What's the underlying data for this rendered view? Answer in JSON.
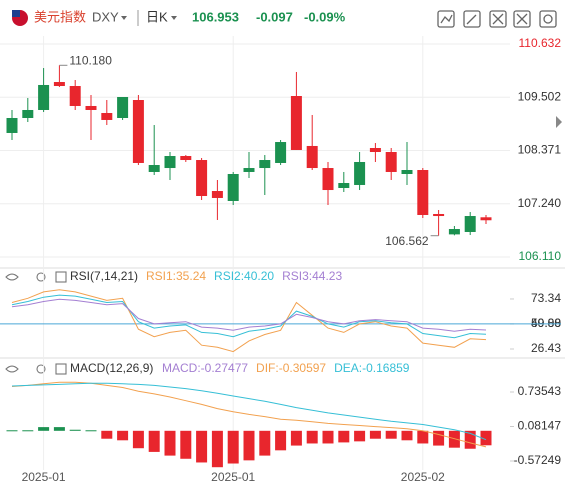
{
  "header": {
    "name": "美元指数",
    "symbol": "DXY",
    "period": "日K",
    "price": 106.953,
    "change": -0.097,
    "change_pct": "-0.09%"
  },
  "chart_data": [
    {
      "type": "candlestick",
      "up_color": "#e8262d",
      "down_color": "#1b9150",
      "categories": [
        null,
        null,
        "2025-01",
        null,
        null,
        null,
        null,
        null,
        null,
        null,
        null,
        null,
        null,
        null,
        "2025-01",
        null,
        null,
        null,
        null,
        null,
        null,
        null,
        null,
        null,
        null,
        null,
        "2025-02",
        null,
        null,
        null,
        null
      ],
      "open": [
        109.061,
        109.231,
        109.762,
        109.74,
        109.316,
        109.231,
        109.019,
        109.507,
        108.106,
        108.063,
        108.254,
        108.169,
        107.405,
        107.363,
        107.872,
        107.999,
        108.169,
        108.551,
        108.382,
        107.999,
        107.532,
        107.681,
        108.127,
        108.339,
        107.915,
        107.957,
        107.002,
        106.98,
        106.704,
        106.98,
        106.89
      ],
      "close": [
        108.743,
        109.061,
        109.231,
        109.825,
        109.74,
        109.316,
        109.167,
        109.061,
        109.443,
        107.915,
        107.999,
        108.254,
        108.169,
        107.511,
        107.299,
        107.915,
        107.999,
        108.106,
        109.528,
        108.467,
        107.999,
        107.575,
        107.639,
        108.424,
        108.339,
        107.872,
        107.957,
        107.023,
        106.59,
        106.641,
        106.953
      ],
      "high": [
        109.231,
        109.486,
        110.122,
        110.18,
        109.868,
        109.549,
        109.443,
        109.507,
        109.549,
        108.912,
        108.339,
        108.275,
        108.212,
        107.745,
        107.915,
        108.339,
        108.275,
        108.594,
        110.038,
        109.125,
        108.127,
        107.915,
        108.339,
        108.53,
        108.424,
        108.551,
        107.999,
        107.108,
        106.768,
        107.065,
        107.002
      ],
      "low": [
        108.594,
        108.976,
        109.188,
        109.719,
        109.231,
        108.594,
        108.912,
        109.019,
        108.063,
        107.851,
        107.745,
        108.127,
        107.32,
        106.896,
        107.214,
        107.787,
        107.426,
        108.063,
        108.382,
        107.957,
        107.214,
        107.49,
        107.532,
        108.127,
        107.745,
        107.639,
        106.938,
        106.562,
        106.57,
        106.577,
        106.811
      ],
      "max_label": "110.180",
      "min_label": "106.562",
      "ylim": [
        106.11,
        110.632
      ],
      "yticks": [
        110.632,
        109.502,
        108.371,
        {
          "value": 107.24,
          "label": "107.240"
        },
        {
          "value": 106.11,
          "label": "106.110"
        }
      ],
      "grid": true
    },
    {
      "type": "line",
      "title": "RSI(7,14,21)",
      "hline": 50,
      "hline_color": "#4aa8d8",
      "series": [
        {
          "name": "RSI1:35.24",
          "color": "#f2a14f",
          "values": [
            70,
            74,
            80,
            82,
            80,
            76,
            72,
            74,
            45,
            38,
            42,
            44,
            30,
            28,
            24,
            34,
            40,
            44,
            70,
            58,
            46,
            42,
            50,
            52,
            48,
            46,
            32,
            30,
            28,
            36,
            35.24
          ]
        },
        {
          "name": "RSI2:40.20",
          "color": "#36bfd6",
          "values": [
            68,
            71,
            75,
            77,
            76,
            73,
            70,
            71,
            52,
            46,
            48,
            49,
            42,
            41,
            38,
            43,
            45,
            48,
            62,
            57,
            50,
            47,
            52,
            53,
            51,
            50,
            41,
            39,
            37,
            41,
            40.2
          ]
        },
        {
          "name": "RSI3:44.23",
          "color": "#a47fd2",
          "values": [
            66,
            68,
            71,
            73,
            72,
            70,
            68,
            69,
            55,
            50,
            51,
            52,
            47,
            46,
            44,
            47,
            48,
            50,
            59,
            56,
            52,
            50,
            53,
            54,
            53,
            52,
            46,
            45,
            43,
            45,
            44.23
          ]
        }
      ],
      "ylim": [
        20.8,
        85.5
      ],
      "yticks": [
        73.34,
        {
          "value": 50,
          "label": "50.00"
        },
        49.88,
        26.43
      ]
    },
    {
      "type": "macd",
      "title": "MACD(12,26,9)",
      "up_color": "#1b9150",
      "down_color": "#e8262d",
      "series": [
        {
          "name": "MACD:-0.27477",
          "color": "#a47fd2",
          "kind": "bar",
          "values": [
            0.01,
            0.01,
            0.07,
            0.07,
            0.02,
            0.01,
            -0.15,
            -0.18,
            -0.33,
            -0.4,
            -0.47,
            -0.53,
            -0.6,
            -0.69,
            -0.62,
            -0.56,
            -0.47,
            -0.37,
            -0.28,
            -0.24,
            -0.24,
            -0.22,
            -0.2,
            -0.15,
            -0.15,
            -0.18,
            -0.24,
            -0.28,
            -0.32,
            -0.34,
            -0.27477
          ]
        },
        {
          "name": "DIF:-0.30597",
          "color": "#f2a14f",
          "kind": "line",
          "values": [
            0.84,
            0.86,
            0.89,
            0.92,
            0.92,
            0.9,
            0.86,
            0.82,
            0.75,
            0.7,
            0.64,
            0.57,
            0.5,
            0.42,
            0.36,
            0.31,
            0.27,
            0.22,
            0.2,
            0.17,
            0.14,
            0.12,
            0.1,
            0.08,
            0.06,
            0.04,
            0.0,
            -0.07,
            -0.15,
            -0.23,
            -0.30597
          ]
        },
        {
          "name": "DEA:-0.16859",
          "color": "#36bfd6",
          "kind": "line",
          "values": [
            0.85,
            0.86,
            0.87,
            0.88,
            0.89,
            0.9,
            0.9,
            0.89,
            0.88,
            0.86,
            0.83,
            0.8,
            0.76,
            0.71,
            0.66,
            0.61,
            0.56,
            0.5,
            0.44,
            0.39,
            0.34,
            0.3,
            0.26,
            0.22,
            0.18,
            0.15,
            0.12,
            0.07,
            0.02,
            -0.05,
            -0.16859
          ]
        }
      ],
      "ylim": [
        -0.705,
        1.342
      ],
      "yticks": [
        0.73543,
        0.08147,
        -0.57249
      ]
    }
  ]
}
